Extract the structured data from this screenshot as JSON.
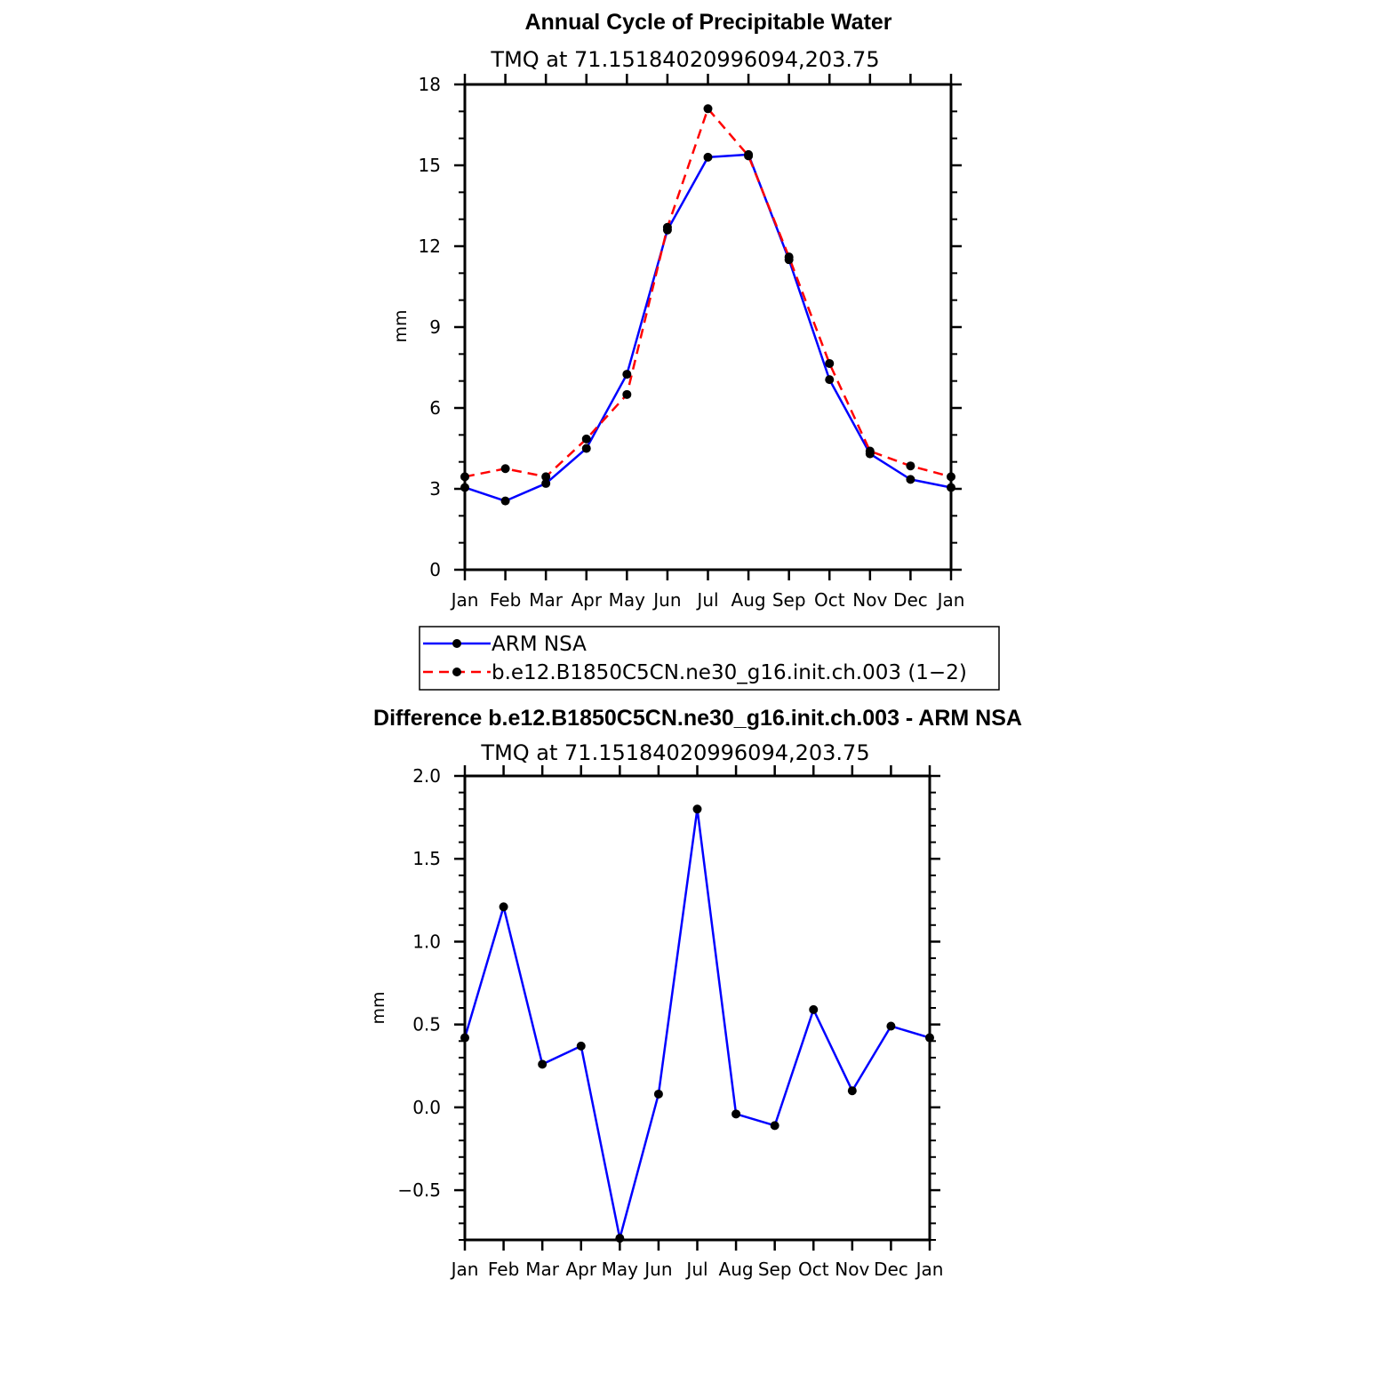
{
  "chart_data": [
    {
      "type": "line",
      "title": "Annual Cycle of Precipitable Water",
      "subtitle": "TMQ at 71.15184020996094,203.75",
      "xlabel": "",
      "ylabel": "mm",
      "categories": [
        "Jan",
        "Feb",
        "Mar",
        "Apr",
        "May",
        "Jun",
        "Jul",
        "Aug",
        "Sep",
        "Oct",
        "Nov",
        "Dec",
        "Jan"
      ],
      "ylim": [
        0,
        18
      ],
      "yticks": [
        0,
        3,
        6,
        9,
        12,
        15,
        18
      ],
      "yticklabels": [
        "0",
        "3",
        "6",
        "9",
        "12",
        "15",
        "18"
      ],
      "series": [
        {
          "name": "ARM NSA",
          "color": "#0000ff",
          "dash": "solid",
          "values": [
            3.05,
            2.55,
            3.2,
            4.5,
            7.25,
            12.6,
            15.3,
            15.4,
            11.5,
            7.05,
            4.3,
            3.35,
            3.05
          ]
        },
        {
          "name": "b.e12.B1850C5CN.ne30_g16.init.ch.003 (1−2)",
          "color": "#ff0000",
          "dash": "dashed",
          "values": [
            3.45,
            3.75,
            3.45,
            4.85,
            6.5,
            12.7,
            17.1,
            15.35,
            11.6,
            7.65,
            4.4,
            3.85,
            3.45
          ]
        }
      ],
      "legend": "below"
    },
    {
      "type": "line",
      "title": "Difference b.e12.B1850C5CN.ne30_g16.init.ch.003 - ARM NSA",
      "subtitle": "TMQ at 71.15184020996094,203.75",
      "xlabel": "",
      "ylabel": "mm",
      "categories": [
        "Jan",
        "Feb",
        "Mar",
        "Apr",
        "May",
        "Jun",
        "Jul",
        "Aug",
        "Sep",
        "Oct",
        "Nov",
        "Dec",
        "Jan"
      ],
      "ylim": [
        -0.8,
        2.0
      ],
      "yticks": [
        -0.5,
        0.0,
        0.5,
        1.0,
        1.5,
        2.0
      ],
      "yticklabels": [
        "−0.5",
        "0.0",
        "0.5",
        "1.0",
        "1.5",
        "2.0"
      ],
      "series": [
        {
          "name": "Difference",
          "color": "#0000ff",
          "dash": "solid",
          "values": [
            0.42,
            1.21,
            0.26,
            0.37,
            -0.79,
            0.08,
            1.8,
            -0.04,
            -0.11,
            0.59,
            0.1,
            0.49,
            0.42
          ]
        }
      ]
    }
  ],
  "legend": {
    "items": [
      {
        "label": "ARM NSA",
        "color": "#0000ff",
        "dash": "solid"
      },
      {
        "label": "b.e12.B1850C5CN.ne30_g16.init.ch.003 (1−2)",
        "color": "#ff0000",
        "dash": "dashed"
      }
    ]
  }
}
